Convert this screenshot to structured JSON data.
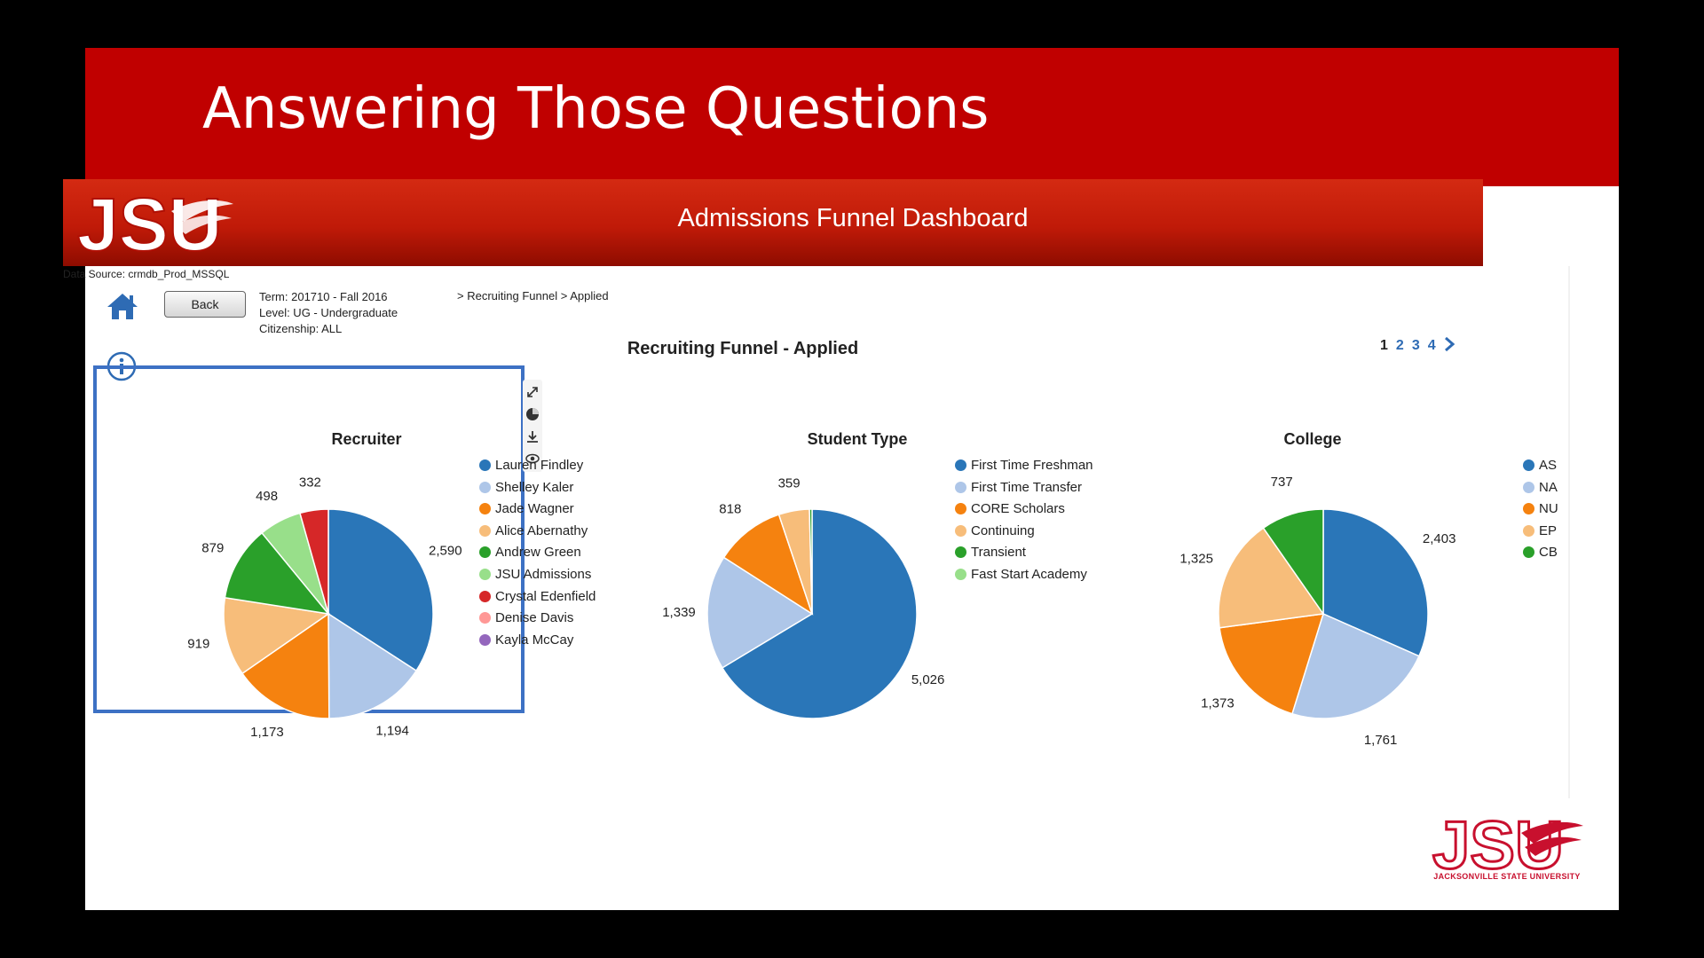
{
  "slide": {
    "title": "Answering Those Questions"
  },
  "banner": {
    "logo_text": "JSU",
    "title": "Admissions Funnel Dashboard"
  },
  "data_source": "Data Source: crmdb_Prod_MSSQL",
  "toolbar": {
    "back_label": "Back"
  },
  "filters": {
    "term": "Term: 201710 - Fall 2016",
    "level": "Level: UG - Undergraduate",
    "citizenship": "Citizenship: ALL"
  },
  "breadcrumb": "> Recruiting Funnel > Applied",
  "dashboard_title": "Recruiting Funnel - Applied",
  "pagination": {
    "pages": [
      "1",
      "2",
      "3",
      "4"
    ],
    "current": "1"
  },
  "footer_logo": {
    "text": "JSU",
    "subtitle": "JACKSONVILLE STATE UNIVERSITY"
  },
  "colors": {
    "brand_red": "#c00000",
    "selection_border": "#3d71c4"
  },
  "chart_data": [
    {
      "type": "pie",
      "title": "Recruiter",
      "legend": [
        {
          "label": "Lauren Findley",
          "color": "#2a76b8"
        },
        {
          "label": "Shelley Kaler",
          "color": "#aec6e8"
        },
        {
          "label": "Jade Wagner",
          "color": "#f5820f"
        },
        {
          "label": "Alice Abernathy",
          "color": "#f7bd7a"
        },
        {
          "label": "Andrew Green",
          "color": "#2aa02a"
        },
        {
          "label": "JSU Admissions",
          "color": "#98df8a"
        },
        {
          "label": "Crystal Edenfield",
          "color": "#d62728"
        },
        {
          "label": "Denise Davis",
          "color": "#ff9896"
        },
        {
          "label": "Kayla McCay",
          "color": "#9467bd"
        }
      ],
      "slices": [
        {
          "label": "Lauren Findley",
          "value": 2590,
          "display": "2,590"
        },
        {
          "label": "Shelley Kaler",
          "value": 1194,
          "display": "1,194"
        },
        {
          "label": "Jade Wagner",
          "value": 1173,
          "display": "1,173"
        },
        {
          "label": "Alice Abernathy",
          "value": 919,
          "display": "919"
        },
        {
          "label": "Andrew Green",
          "value": 879,
          "display": "879"
        },
        {
          "label": "JSU Admissions",
          "value": 498,
          "display": "498"
        },
        {
          "label": "Crystal Edenfield",
          "value": 332,
          "display": "332"
        }
      ]
    },
    {
      "type": "pie",
      "title": "Student Type",
      "legend": [
        {
          "label": "First Time Freshman",
          "color": "#2a76b8"
        },
        {
          "label": "First Time Transfer",
          "color": "#aec6e8"
        },
        {
          "label": "CORE Scholars",
          "color": "#f5820f"
        },
        {
          "label": "Continuing",
          "color": "#f7bd7a"
        },
        {
          "label": "Transient",
          "color": "#2aa02a"
        },
        {
          "label": "Fast Start Academy",
          "color": "#98df8a"
        }
      ],
      "slices": [
        {
          "label": "First Time Freshman",
          "value": 5026,
          "display": "5,026"
        },
        {
          "label": "First Time Transfer",
          "value": 1339,
          "display": "1,339"
        },
        {
          "label": "CORE Scholars",
          "value": 818,
          "display": "818"
        },
        {
          "label": "Continuing",
          "value": 359,
          "display": "359"
        },
        {
          "label": "Transient",
          "value": 30,
          "display": ""
        }
      ]
    },
    {
      "type": "pie",
      "title": "College",
      "legend": [
        {
          "label": "AS",
          "color": "#2a76b8"
        },
        {
          "label": "NA",
          "color": "#aec6e8"
        },
        {
          "label": "NU",
          "color": "#f5820f"
        },
        {
          "label": "EP",
          "color": "#f7bd7a"
        },
        {
          "label": "CB",
          "color": "#2aa02a"
        }
      ],
      "slices": [
        {
          "label": "AS",
          "value": 2403,
          "display": "2,403"
        },
        {
          "label": "NA",
          "value": 1761,
          "display": "1,761"
        },
        {
          "label": "NU",
          "value": 1373,
          "display": "1,373"
        },
        {
          "label": "EP",
          "value": 1325,
          "display": "1,325"
        },
        {
          "label": "CB",
          "value": 737,
          "display": "737"
        }
      ]
    }
  ]
}
